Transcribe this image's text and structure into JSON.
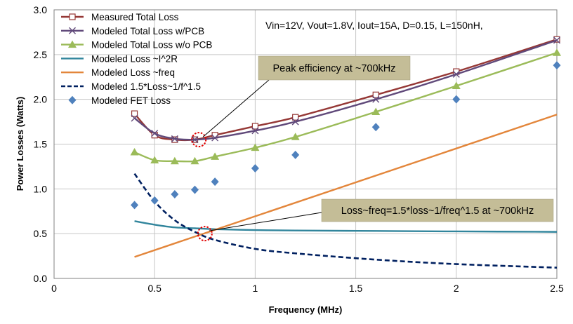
{
  "chart_data": {
    "type": "line",
    "xlabel": "Frequency (MHz)",
    "ylabel": "Power Losses (Watts)",
    "xlim": [
      0,
      2.5
    ],
    "ylim": [
      0,
      3.0
    ],
    "x_ticks": [
      "0",
      "0.5",
      "1",
      "1.5",
      "2",
      "2.5"
    ],
    "y_ticks": [
      "0.0",
      "0.5",
      "1.0",
      "1.5",
      "2.0",
      "2.5",
      "3.0"
    ],
    "grid": true,
    "legend_position": "top-left",
    "conditions_text": "Vin=12V, Vout=1.8V, Iout=15A, D=0.15, L=150nH,",
    "series": [
      {
        "name": "Measured Total Loss",
        "color": "#953735",
        "marker": "open-square",
        "line": "solid",
        "x": [
          0.4,
          0.5,
          0.6,
          0.7,
          0.8,
          1.0,
          1.2,
          1.6,
          2.0,
          2.5
        ],
        "y": [
          1.84,
          1.6,
          1.55,
          1.55,
          1.6,
          1.7,
          1.8,
          2.05,
          2.31,
          2.67
        ]
      },
      {
        "name": "Modeled Total Loss w/PCB",
        "color": "#60497a",
        "marker": "x",
        "line": "solid",
        "x": [
          0.4,
          0.5,
          0.6,
          0.7,
          0.8,
          1.0,
          1.2,
          1.6,
          2.0,
          2.5
        ],
        "y": [
          1.79,
          1.62,
          1.56,
          1.55,
          1.57,
          1.65,
          1.75,
          2.0,
          2.28,
          2.66
        ]
      },
      {
        "name": "Modeled Total Loss w/o PCB",
        "color": "#9bbb59",
        "marker": "triangle",
        "line": "solid",
        "x": [
          0.4,
          0.5,
          0.6,
          0.7,
          0.8,
          1.0,
          1.2,
          1.6,
          2.0,
          2.5
        ],
        "y": [
          1.41,
          1.32,
          1.31,
          1.31,
          1.36,
          1.46,
          1.58,
          1.86,
          2.15,
          2.52
        ]
      },
      {
        "name": "Modeled Loss ~I^2R",
        "color": "#31859c",
        "marker": "none",
        "line": "solid",
        "x": [
          0.4,
          0.5,
          0.6,
          0.7,
          0.8,
          1.0,
          1.2,
          1.6,
          2.0,
          2.5
        ],
        "y": [
          0.64,
          0.6,
          0.57,
          0.56,
          0.55,
          0.54,
          0.535,
          0.53,
          0.525,
          0.52
        ]
      },
      {
        "name": "Modeled Loss ~freq",
        "color": "#e3863b",
        "marker": "none",
        "line": "solid",
        "x": [
          0.4,
          2.5
        ],
        "y": [
          0.24,
          1.83
        ]
      },
      {
        "name": "Modeled 1.5*Loss~1/f^1.5",
        "color": "#002060",
        "marker": "none",
        "line": "dashed",
        "x": [
          0.4,
          0.5,
          0.6,
          0.7,
          0.8,
          1.0,
          1.2,
          1.6,
          2.0,
          2.5
        ],
        "y": [
          1.17,
          0.86,
          0.65,
          0.52,
          0.43,
          0.33,
          0.28,
          0.21,
          0.16,
          0.12
        ]
      },
      {
        "name": "Modeled FET Loss",
        "color": "#4f81bd",
        "marker": "diamond",
        "line": "none",
        "x": [
          0.4,
          0.5,
          0.6,
          0.7,
          0.8,
          1.0,
          1.2,
          1.6,
          2.0,
          2.5
        ],
        "y": [
          0.82,
          0.87,
          0.94,
          0.99,
          1.08,
          1.23,
          1.38,
          1.69,
          2.0,
          2.38
        ]
      }
    ],
    "annotations": [
      {
        "text": "Peak efficiency at ~700kHz",
        "target": {
          "x": 0.72,
          "y": 1.55
        }
      },
      {
        "text": "Loss~freq=1.5*loss~1/freq^1.5 at ~700kHz",
        "target": {
          "x": 0.75,
          "y": 0.5
        }
      }
    ]
  }
}
